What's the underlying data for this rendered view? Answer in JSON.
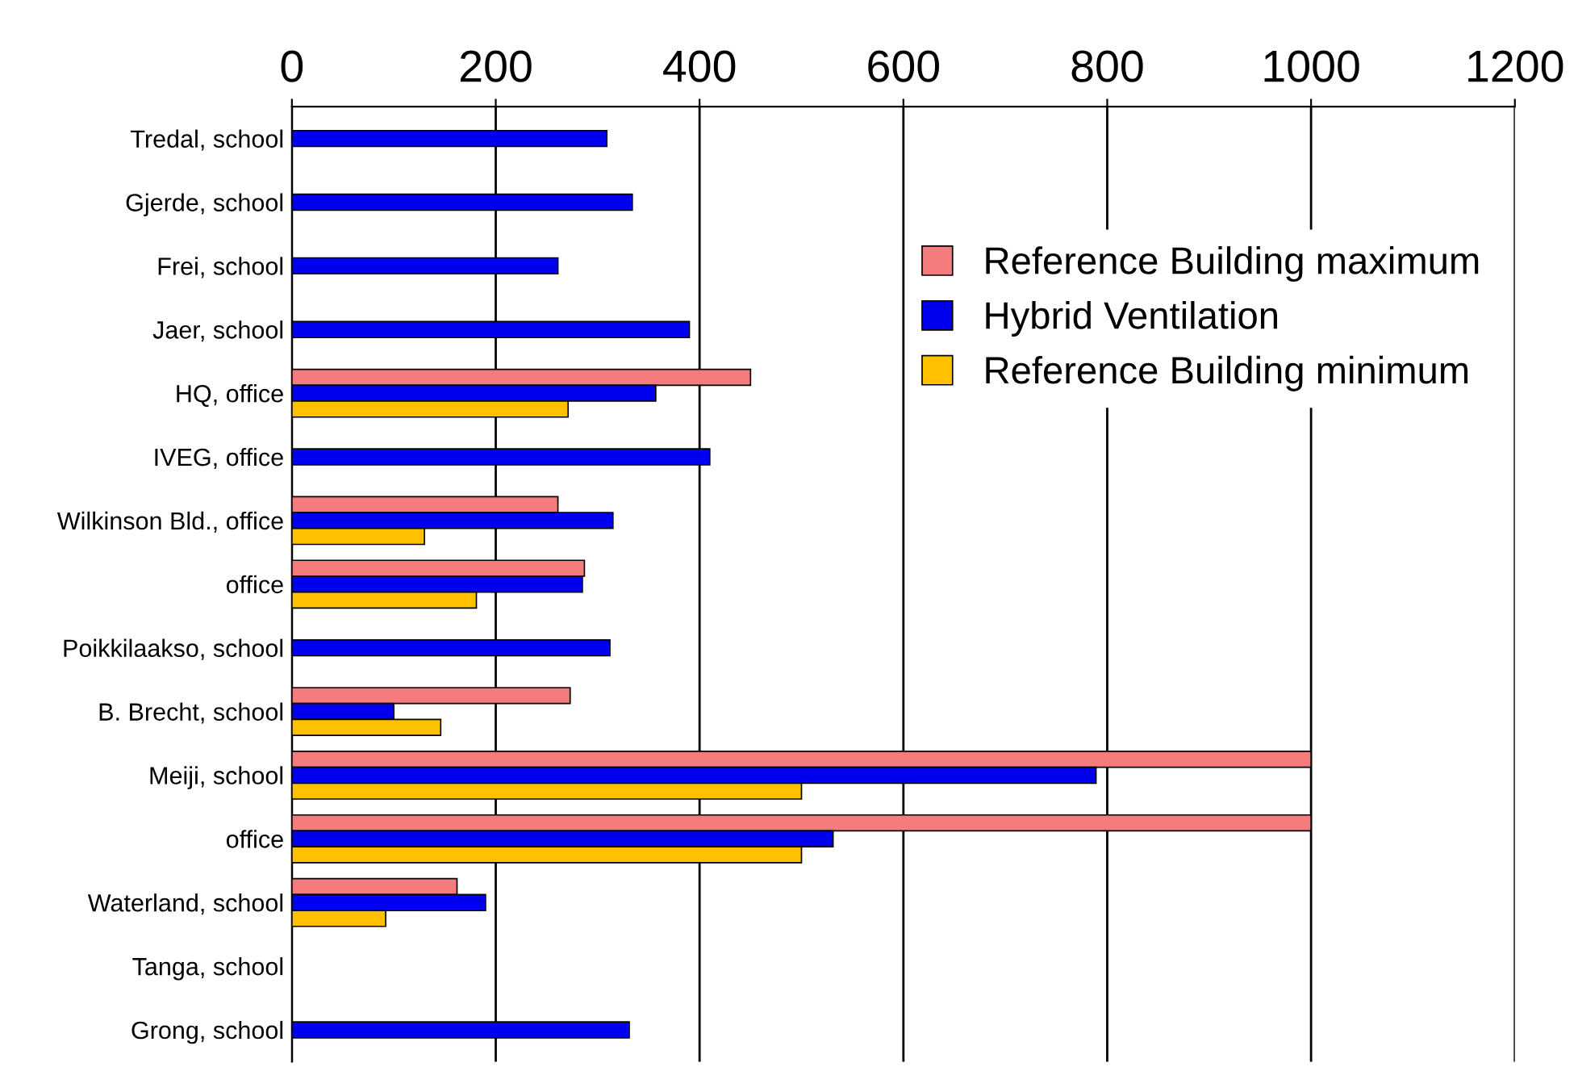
{
  "chart_data": {
    "type": "bar",
    "orientation": "horizontal",
    "categories": [
      "Tredal, school",
      "Gjerde, school",
      "Frei, school",
      "Jaer, school",
      "HQ, office",
      "IVEG, office",
      "Wilkinson Bld., office",
      "office",
      "Poikkilaakso, school",
      "B. Brecht, school",
      "Meiji, school",
      "office",
      "Waterland, school",
      "Tanga, school",
      "Grong, school"
    ],
    "series": [
      {
        "name": "Reference Building maximum",
        "color": "#f47c7c",
        "values": [
          null,
          null,
          null,
          null,
          450,
          null,
          261,
          287,
          null,
          273,
          1000,
          1000,
          162,
          null,
          null
        ]
      },
      {
        "name": "Hybrid Ventilation",
        "color": "#0000ee",
        "values": [
          309,
          334,
          261,
          390,
          357,
          410,
          315,
          285,
          312,
          100,
          789,
          531,
          190,
          null,
          331
        ]
      },
      {
        "name": "Reference Building minimum",
        "color": "#ffc000",
        "values": [
          null,
          null,
          null,
          null,
          271,
          null,
          130,
          181,
          null,
          146,
          500,
          500,
          92,
          null,
          null
        ]
      }
    ],
    "xlim": [
      0,
      1200
    ],
    "xticks": [
      0,
      200,
      400,
      600,
      800,
      1000,
      1200
    ],
    "grid": "x",
    "legend": "top right"
  }
}
